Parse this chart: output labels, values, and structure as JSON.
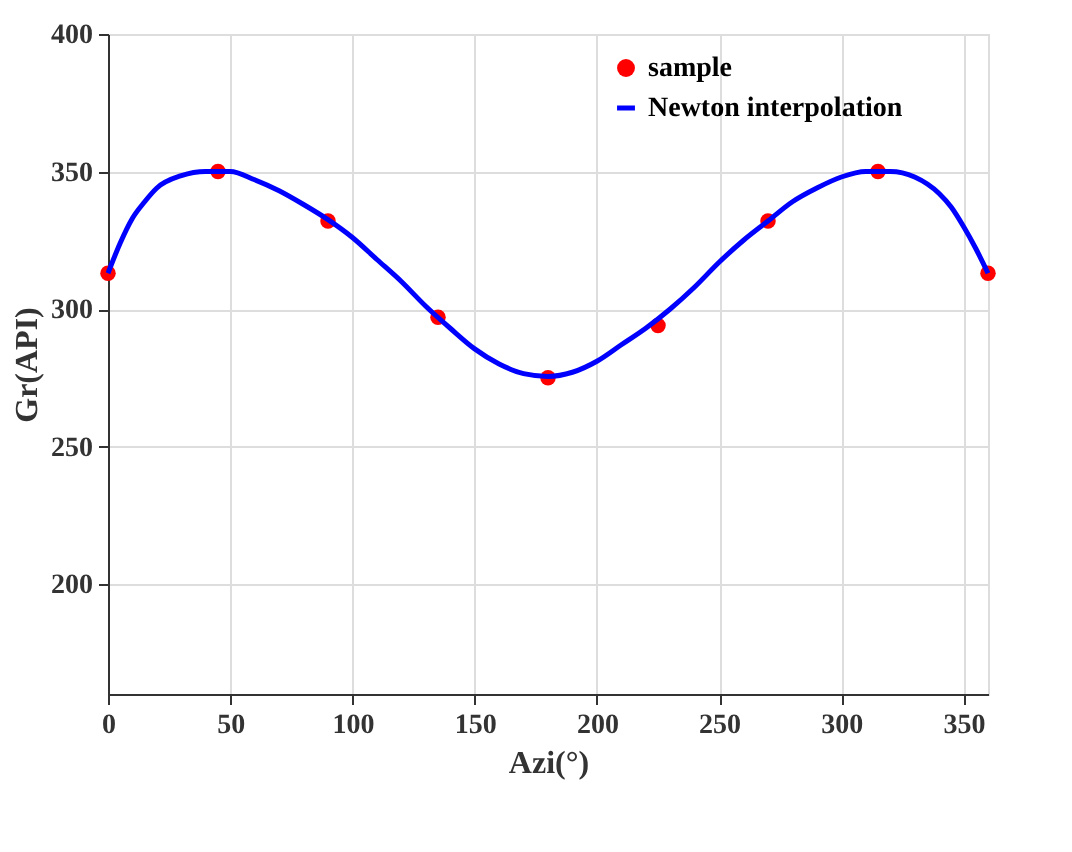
{
  "chart_data": {
    "type": "line",
    "xlabel": "Azi(°)",
    "ylabel": "Gr(API)",
    "xlim": [
      0,
      360
    ],
    "xticks": [
      0,
      50,
      100,
      150,
      200,
      250,
      300,
      350
    ],
    "ylim": [
      160,
      400
    ],
    "yticks": [
      200,
      250,
      300,
      350,
      400
    ],
    "grid": true,
    "legend": "top right",
    "series": [
      {
        "name": "sample",
        "type": "scatter",
        "marker": "circle",
        "color": "#ff0000",
        "x": [
          0,
          45,
          90,
          135,
          180,
          225,
          270,
          315,
          360
        ],
        "values": [
          313,
          350,
          332,
          297,
          275,
          294,
          332,
          350,
          313
        ]
      },
      {
        "name": "Newton interpolation",
        "type": "line",
        "line_style": "solid",
        "color": "#0000ff",
        "x": [
          0,
          5,
          10,
          15,
          20,
          30,
          40,
          50,
          60,
          70,
          80,
          90,
          100,
          110,
          120,
          130,
          140,
          150,
          160,
          170,
          180,
          190,
          200,
          210,
          220,
          230,
          240,
          250,
          260,
          270,
          280,
          290,
          300,
          310,
          320,
          330,
          340,
          345,
          350,
          355,
          360
        ],
        "values": [
          313,
          324,
          333,
          339,
          344,
          348.5,
          350,
          350,
          347,
          343,
          338,
          332.5,
          326,
          318,
          310,
          301,
          293,
          285.5,
          280,
          276.5,
          275.5,
          277,
          281,
          287,
          293,
          300,
          308,
          317,
          325,
          332,
          339,
          344,
          348,
          350,
          350,
          348,
          342,
          337,
          330,
          322,
          313
        ]
      }
    ]
  }
}
